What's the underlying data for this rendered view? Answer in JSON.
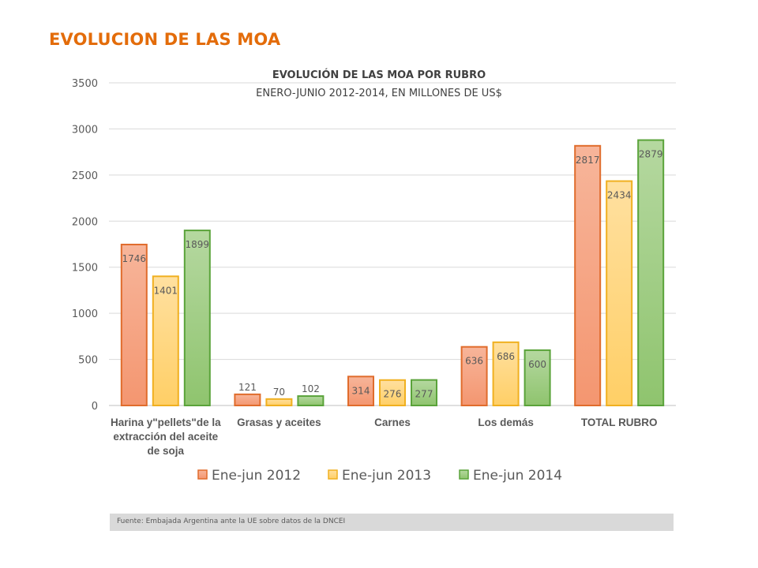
{
  "slide": {
    "title": "EVOLUCION DE LAS MOA",
    "source": "Fuente: Embajada  Argentina ante la UE sobre datos de la DNCEI"
  },
  "chart_data": {
    "type": "bar",
    "title": "EVOLUCIÓN DE LAS MOA POR RUBRO",
    "subtitle": "ENERO-JUNIO 2012-2014, EN MILLONES DE US$",
    "categories": [
      [
        "Harina y\"pellets\"de la",
        "extracción del aceite",
        "de soja"
      ],
      [
        "Grasas y aceites"
      ],
      [
        "Carnes"
      ],
      [
        "Los demás"
      ],
      [
        "TOTAL RUBRO"
      ]
    ],
    "series": [
      {
        "name": "Ene-jun 2012",
        "values": [
          1746,
          121,
          314,
          636,
          2817
        ],
        "fill": "#f4a582",
        "stroke": "#e06c2c"
      },
      {
        "name": "Ene-jun 2013",
        "values": [
          1401,
          70,
          276,
          686,
          2434
        ],
        "fill": "#ffd37a",
        "stroke": "#f0b020"
      },
      {
        "name": "Ene-jun 2014",
        "values": [
          1899,
          102,
          277,
          600,
          2879
        ],
        "fill": "#a5d08a",
        "stroke": "#5aa33a"
      }
    ],
    "ylim": [
      0,
      3500
    ],
    "yticks": [
      "0",
      "500",
      "1000",
      "1500",
      "2000",
      "2500",
      "3000",
      "3500"
    ],
    "grid": true,
    "legend_position": "bottom"
  }
}
